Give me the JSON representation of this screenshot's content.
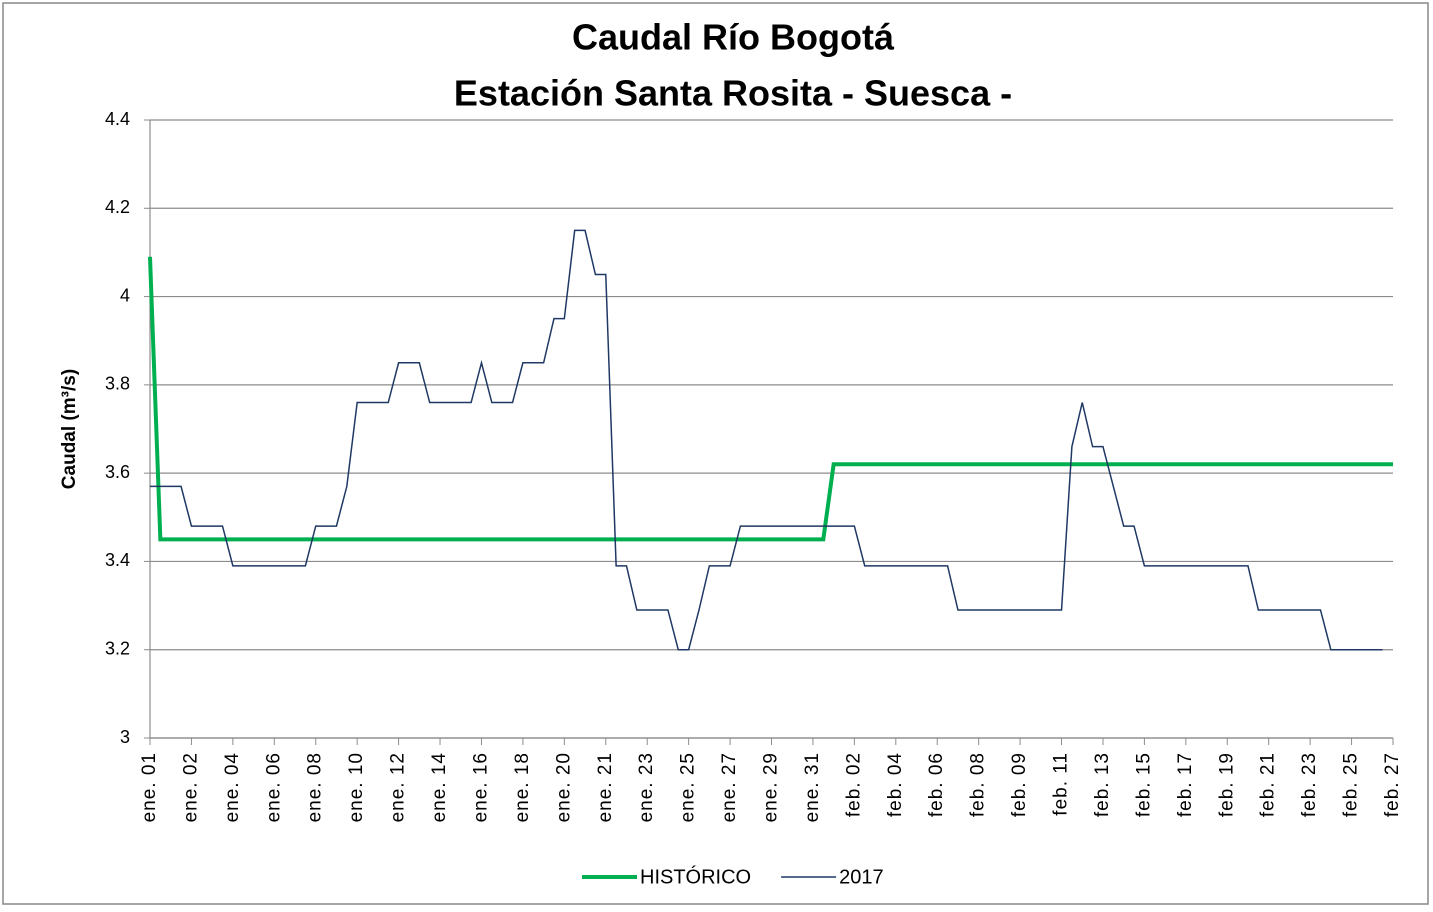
{
  "chart_data": {
    "type": "line",
    "title": "Caudal Río Bogotá",
    "subtitle": "Estación Santa Rosita - Suesca -",
    "y_label": "Caudal (m³/s)",
    "categories": [
      "ene. 01",
      null,
      null,
      null,
      "ene. 02",
      null,
      null,
      null,
      "ene. 04",
      null,
      null,
      null,
      "ene. 06",
      null,
      null,
      null,
      "ene. 08",
      null,
      null,
      null,
      "ene. 10",
      null,
      null,
      null,
      "ene. 12",
      null,
      null,
      null,
      "ene. 14",
      null,
      null,
      null,
      "ene. 16",
      null,
      null,
      null,
      "ene. 18",
      null,
      null,
      null,
      "ene. 20",
      null,
      null,
      null,
      "ene. 21",
      null,
      null,
      null,
      "ene. 23",
      null,
      null,
      null,
      "ene. 25",
      null,
      null,
      null,
      "ene. 27",
      null,
      null,
      null,
      "ene. 29",
      null,
      null,
      null,
      "ene. 31",
      null,
      null,
      null,
      "feb. 02",
      null,
      null,
      null,
      "feb. 04",
      null,
      null,
      null,
      "feb. 06",
      null,
      null,
      null,
      "feb. 08",
      null,
      null,
      null,
      "feb. 09",
      null,
      null,
      null,
      "feb. 11",
      null,
      null,
      null,
      "feb. 13",
      null,
      null,
      null,
      "feb. 15",
      null,
      null,
      null,
      "feb. 17",
      null,
      null,
      null,
      "feb. 19",
      null,
      null,
      null,
      "feb. 21",
      null,
      null,
      null,
      "feb. 23",
      null,
      null,
      null,
      "feb. 25",
      null,
      null,
      null,
      "feb. 27"
    ],
    "series": [
      {
        "name": "HISTÓRICO",
        "color": "#00b050",
        "width": 4,
        "values": [
          4.09,
          3.45,
          3.45,
          3.45,
          3.45,
          3.45,
          3.45,
          3.45,
          3.45,
          3.45,
          3.45,
          3.45,
          3.45,
          3.45,
          3.45,
          3.45,
          3.45,
          3.45,
          3.45,
          3.45,
          3.45,
          3.45,
          3.45,
          3.45,
          3.45,
          3.45,
          3.45,
          3.45,
          3.45,
          3.45,
          3.45,
          3.45,
          3.45,
          3.45,
          3.45,
          3.45,
          3.45,
          3.45,
          3.45,
          3.45,
          3.45,
          3.45,
          3.45,
          3.45,
          3.45,
          3.45,
          3.45,
          3.45,
          3.45,
          3.45,
          3.45,
          3.45,
          3.45,
          3.45,
          3.45,
          3.45,
          3.45,
          3.45,
          3.45,
          3.45,
          3.45,
          3.45,
          3.45,
          3.45,
          3.45,
          3.45,
          3.62,
          3.62,
          3.62,
          3.62,
          3.62,
          3.62,
          3.62,
          3.62,
          3.62,
          3.62,
          3.62,
          3.62,
          3.62,
          3.62,
          3.62,
          3.62,
          3.62,
          3.62,
          3.62,
          3.62,
          3.62,
          3.62,
          3.62,
          3.62,
          3.62,
          3.62,
          3.62,
          3.62,
          3.62,
          3.62,
          3.62,
          3.62,
          3.62,
          3.62,
          3.62,
          3.62,
          3.62,
          3.62,
          3.62,
          3.62,
          3.62,
          3.62,
          3.62,
          3.62,
          3.62,
          3.62,
          3.62,
          3.62,
          3.62,
          3.62,
          3.62,
          3.62,
          3.62,
          3.62,
          3.62
        ]
      },
      {
        "name": "2017",
        "color": "#1f3864",
        "width": 1.5,
        "values": [
          3.57,
          3.57,
          3.57,
          3.57,
          3.48,
          3.48,
          3.48,
          3.48,
          3.39,
          3.39,
          3.39,
          3.39,
          3.39,
          3.39,
          3.39,
          3.39,
          3.48,
          3.48,
          3.48,
          3.57,
          3.76,
          3.76,
          3.76,
          3.76,
          3.85,
          3.85,
          3.85,
          3.76,
          3.76,
          3.76,
          3.76,
          3.76,
          3.85,
          3.76,
          3.76,
          3.76,
          3.85,
          3.85,
          3.85,
          3.95,
          3.95,
          4.15,
          4.15,
          4.05,
          4.05,
          3.39,
          3.39,
          3.29,
          3.29,
          3.29,
          3.29,
          3.2,
          3.2,
          3.29,
          3.39,
          3.39,
          3.39,
          3.48,
          3.48,
          3.48,
          3.48,
          3.48,
          3.48,
          3.48,
          3.48,
          3.48,
          3.48,
          3.48,
          3.48,
          3.39,
          3.39,
          3.39,
          3.39,
          3.39,
          3.39,
          3.39,
          3.39,
          3.39,
          3.29,
          3.29,
          3.29,
          3.29,
          3.29,
          3.29,
          3.29,
          3.29,
          3.29,
          3.29,
          3.29,
          3.66,
          3.76,
          3.66,
          3.66,
          3.57,
          3.48,
          3.48,
          3.39,
          3.39,
          3.39,
          3.39,
          3.39,
          3.39,
          3.39,
          3.39,
          3.39,
          3.39,
          3.39,
          3.29,
          3.29,
          3.29,
          3.29,
          3.29,
          3.29,
          3.29,
          3.2,
          3.2,
          3.2,
          3.2,
          3.2,
          3.2,
          null
        ]
      }
    ],
    "ylim": [
      3,
      4.4
    ],
    "yticks": [
      3,
      3.2,
      3.4,
      3.6,
      3.8,
      4,
      4.2,
      4.4
    ],
    "grid": true,
    "legend": "bottom"
  }
}
